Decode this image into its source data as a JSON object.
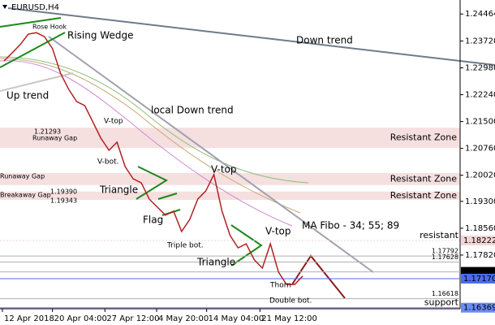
{
  "chart_data": {
    "type": "line",
    "title": "EURUSD,H4",
    "color": "#b22222",
    "x": [
      0.5,
      1.5,
      2.5,
      3.5,
      4.5,
      5.5,
      6.5,
      7.5,
      8.5,
      9.5,
      10.5,
      11.5,
      12.5,
      13.5,
      14.5,
      15.5,
      16.5,
      17.5,
      18.5,
      19.5,
      20.5,
      21.5,
      22.5,
      23.5,
      24.5,
      25.5,
      26.5,
      27.5,
      28.5,
      29.5,
      30.5,
      31.5,
      32.5,
      33.5,
      34.5,
      35.5,
      36.5,
      37.5
    ],
    "values": [
      1.2317,
      1.2339,
      1.2362,
      1.2391,
      1.2395,
      1.2384,
      1.2351,
      1.2283,
      1.2239,
      1.2205,
      1.2194,
      1.2149,
      1.2104,
      1.2071,
      1.2093,
      1.2026,
      1.1992,
      1.1981,
      1.1936,
      1.1914,
      1.1892,
      1.1903,
      1.1847,
      1.188,
      1.1936,
      1.1959,
      1.2004,
      1.1903,
      1.1836,
      1.1802,
      1.1813,
      1.1769,
      1.1746,
      1.1813,
      1.1735,
      1.1701,
      1.1701,
      1.1724
    ],
    "xlim": [
      0,
      57
    ],
    "ylim": [
      1.1634,
      1.2485
    ],
    "xticks": [
      {
        "value": 0.3,
        "label": "12 Apr 2018"
      },
      {
        "value": 6.5,
        "label": "20 Apr 04:00"
      },
      {
        "value": 13,
        "label": "27 Apr 12:00"
      },
      {
        "value": 19.4,
        "label": "4 May 20:00"
      },
      {
        "value": 25.6,
        "label": "14 May 04:00"
      },
      {
        "value": 32.2,
        "label": "21 May 12:00"
      }
    ],
    "yticks": [
      1.24464,
      {
        "value": 1.2372,
        "label": "1.23720"
      },
      {
        "value": 1.2298,
        "label": "1.22980"
      },
      {
        "value": 1.2224,
        "label": "1.22240"
      },
      {
        "value": 1.215,
        "label": "1.21500"
      },
      {
        "value": 1.2076,
        "label": "1.20760"
      },
      {
        "value": 1.2002,
        "label": "1.20020"
      },
      {
        "value": 1.193,
        "label": "1.19300"
      },
      {
        "value": 1.1856,
        "label": "1.18560"
      },
      {
        "value": 1.1782,
        "label": "1.17820"
      }
    ],
    "zones": [
      {
        "from": 1.2077,
        "to": 1.2133,
        "label": "Resistant Zone"
      },
      {
        "from": 1.1975,
        "to": 1.2008,
        "label": "Resistant Zone"
      },
      {
        "from": 1.1934,
        "to": 1.1957,
        "label": "Resistant Zone"
      }
    ],
    "levels": [
      {
        "value": 1.18222,
        "label": "1.18222",
        "name": "resistant",
        "box": "#f2d5d5"
      },
      {
        "value": 1.17792,
        "label": "1.17792"
      },
      {
        "value": 1.17628,
        "label": "1.17628"
      },
      {
        "value": 1.17357,
        "label": "1.17357",
        "box": "#000000"
      },
      {
        "value": 1.1717,
        "label": "1.17170",
        "box": "#4a6cf0"
      },
      {
        "value": 1.16618,
        "label": "1.16618"
      },
      {
        "value": 1.16369,
        "label": "1.16369",
        "name": "support",
        "box": "#6a8cf5"
      }
    ],
    "annotations": [
      "Rose Hook",
      "Rising Wedge",
      "Down trend",
      "Up trend",
      "local Down trend",
      "V-top",
      "V-bot.",
      "1.21293",
      "Runaway Gap",
      "Runaway Gap",
      "Breakaway Gap",
      "1.19390",
      "1.19343",
      "Triangle",
      "Flag",
      "Triple bot.",
      "V-top",
      "MA Fibo - 34; 55; 89",
      "Triangle",
      "V-top",
      "Thorn",
      "Double bot."
    ]
  }
}
